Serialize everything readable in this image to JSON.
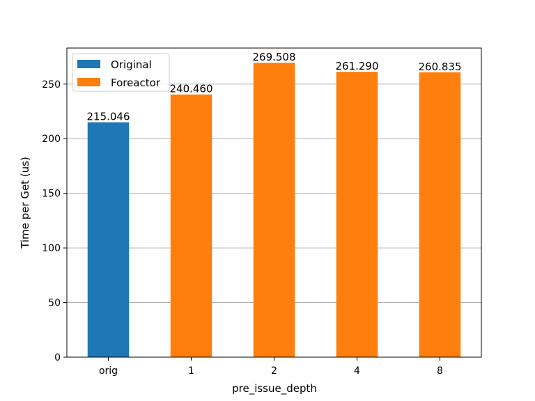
{
  "chart_data": {
    "type": "bar",
    "categories": [
      "orig",
      "1",
      "2",
      "4",
      "8"
    ],
    "series": [
      {
        "name": "Original",
        "color": "#1f77b4",
        "values": [
          215.046,
          null,
          null,
          null,
          null
        ]
      },
      {
        "name": "Foreactor",
        "color": "#ff7f0e",
        "values": [
          null,
          240.46,
          269.508,
          261.29,
          260.835
        ]
      }
    ],
    "data_labels": [
      "215.046",
      "240.460",
      "269.508",
      "261.290",
      "260.835"
    ],
    "xlabel": "pre_issue_depth",
    "ylabel": "Time per Get (us)",
    "ylim": [
      0,
      283
    ],
    "yticks": [
      0,
      50,
      100,
      150,
      200,
      250
    ],
    "grid": "y",
    "legend_position": "top-left"
  }
}
